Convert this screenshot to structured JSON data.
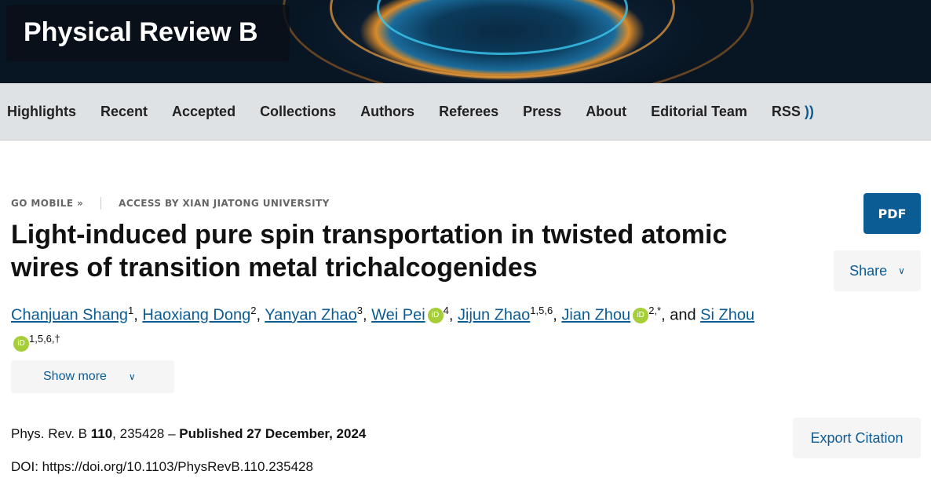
{
  "journal": {
    "title": "Physical Review B"
  },
  "nav": {
    "items": [
      "Highlights",
      "Recent",
      "Accepted",
      "Collections",
      "Authors",
      "Referees",
      "Press",
      "About",
      "Editorial Team",
      "RSS"
    ]
  },
  "meta": {
    "go_mobile": "GO MOBILE »",
    "access": "ACCESS BY XIAN JIATONG UNIVERSITY"
  },
  "article": {
    "title": "Light-induced pure spin transportation in twisted atomic wires of transition metal trichalcogenides",
    "authors": [
      {
        "name": "Chanjuan Shang",
        "sup": "1",
        "orcid": false
      },
      {
        "name": "Haoxiang Dong",
        "sup": "2",
        "orcid": false
      },
      {
        "name": "Yanyan Zhao",
        "sup": "3",
        "orcid": false
      },
      {
        "name": "Wei Pei",
        "sup": "4",
        "orcid": true
      },
      {
        "name": "Jijun Zhao",
        "sup": "1,5,6",
        "orcid": false
      },
      {
        "name": "Jian Zhou",
        "sup": "2,*",
        "orcid": true
      },
      {
        "name": "Si Zhou",
        "sup": "1,5,6,†",
        "orcid": true
      }
    ],
    "and": "and",
    "orcid_label": "iD",
    "show_more": "Show more",
    "journal_ref": "Phys. Rev. B",
    "volume": "110",
    "article_no": ", 235428 – ",
    "published": "Published 27 December, 2024",
    "doi": "DOI: https://doi.org/10.1103/PhysRevB.110.235428"
  },
  "actions": {
    "pdf": "PDF",
    "share": "Share",
    "export": "Export Citation"
  },
  "colors": {
    "brand_blue": "#0b5b95",
    "orcid_green": "#a6ce39"
  }
}
